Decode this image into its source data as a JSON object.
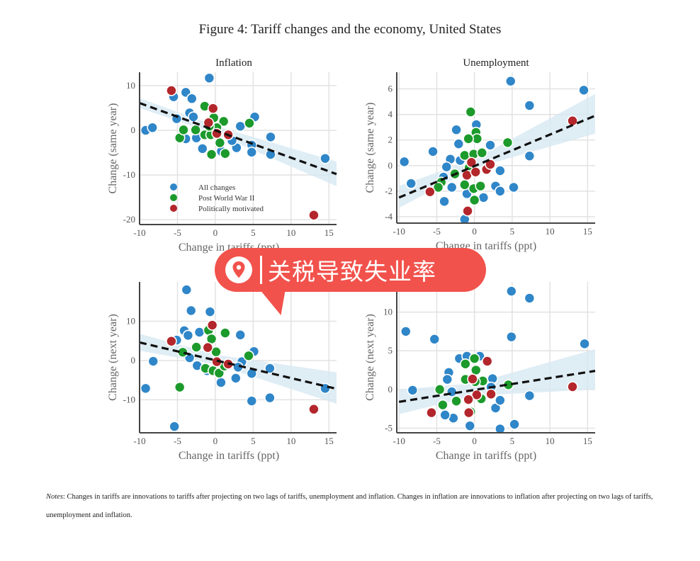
{
  "title": "Figure 4: Tariff changes and the economy, United States",
  "notes_label": "Notes",
  "notes_text": ": Changes in tariffs are innovations to tariffs after projecting on two lags of tariffs, unemployment and inflation. Changes in inflation are innovations to inflation after projecting on two lags of tariffs, unemployment and inflation.",
  "overlay": {
    "text": "关税导致失业率",
    "icon": "location-pin-icon",
    "color": "#f2524c"
  },
  "colors": {
    "all": "#2f86c8",
    "postwar": "#1c9a2b",
    "political": "#b3262b",
    "band": "#d7e8f3",
    "fit": "#111111"
  },
  "legend": [
    "All changes",
    "Post World War II",
    "Politically motivated"
  ],
  "chart_data": [
    {
      "type": "scatter",
      "title": "Inflation",
      "xlabel": "Change in tariffs (ppt)",
      "ylabel": "Change (same year)",
      "xlim": [
        -10,
        16
      ],
      "ylim": [
        -21.1,
        13
      ],
      "xticks": [
        -10,
        -5,
        0,
        5,
        10,
        15
      ],
      "yticks": [
        -20,
        -10,
        0,
        10
      ],
      "grid": true,
      "legend_position": "bottom-left",
      "fit_line": [
        [
          -10,
          6.1
        ],
        [
          16,
          -9.8
        ]
      ],
      "ci_band": {
        "x": [
          -10,
          0,
          16
        ],
        "upper": [
          7.2,
          1,
          -7
        ],
        "lower": [
          5,
          -0.8,
          -12.5
        ]
      },
      "series": [
        {
          "name": "All changes",
          "points": [
            [
              -0.8,
              11.7
            ],
            [
              -5.5,
              7.5
            ],
            [
              -3.9,
              8.5
            ],
            [
              -3.1,
              7.1
            ],
            [
              -3.4,
              3.9
            ],
            [
              -2.9,
              3
            ],
            [
              -5.1,
              2.6
            ],
            [
              -9.2,
              0
            ],
            [
              -8.3,
              0.6
            ],
            [
              -3.9,
              -1.9
            ],
            [
              -2.5,
              -1.7
            ],
            [
              -1.7,
              -4.1
            ],
            [
              -0.5,
              -5.2
            ],
            [
              0.8,
              -4.7
            ],
            [
              2.8,
              -3.9
            ],
            [
              3.3,
              0.9
            ],
            [
              5.2,
              3
            ],
            [
              4.8,
              -3.3
            ],
            [
              4.8,
              -4.9
            ],
            [
              7.3,
              -1.5
            ],
            [
              7.3,
              -5.4
            ],
            [
              14.5,
              -6.3
            ],
            [
              2.2,
              -2.3
            ]
          ]
        },
        {
          "name": "Post World War II",
          "points": [
            [
              -4.7,
              -1.7
            ],
            [
              -4.2,
              0.1
            ],
            [
              -2.6,
              0.1
            ],
            [
              -1.4,
              5.4
            ],
            [
              -1.4,
              -1
            ],
            [
              -0.6,
              -1
            ],
            [
              -0.5,
              -5.4
            ],
            [
              1.3,
              -5.2
            ],
            [
              0.6,
              -2.8
            ],
            [
              1.1,
              2
            ],
            [
              4.5,
              1.6
            ],
            [
              -0.2,
              2.8
            ],
            [
              0.2,
              0.6
            ],
            [
              -0.8,
              0.9
            ]
          ]
        },
        {
          "name": "Politically motivated",
          "points": [
            [
              -5.8,
              8.9
            ],
            [
              -0.3,
              4.9
            ],
            [
              -0.9,
              1.7
            ],
            [
              0.2,
              -0.7
            ],
            [
              1.7,
              -1
            ],
            [
              13,
              -19
            ]
          ]
        }
      ]
    },
    {
      "type": "scatter",
      "title": "Unemployment",
      "xlabel": "Change in tariffs (ppt)",
      "ylabel": "Change (same year)",
      "xlim": [
        -10.3,
        16
      ],
      "ylim": [
        -4.5,
        7.3
      ],
      "xticks": [
        -10,
        -5,
        0,
        5,
        10,
        15
      ],
      "yticks": [
        -4,
        -2,
        0,
        2,
        4,
        6
      ],
      "grid": true,
      "fit_line": [
        [
          -10,
          -2.5
        ],
        [
          16,
          3.9
        ]
      ],
      "ci_band": {
        "x": [
          -10,
          0,
          16
        ],
        "upper": [
          -1.6,
          0.5,
          5.6
        ],
        "lower": [
          -3.3,
          -0.2,
          2.5
        ]
      },
      "series": [
        {
          "name": "All changes",
          "points": [
            [
              4.8,
              6.6
            ],
            [
              14.5,
              5.9
            ],
            [
              7.3,
              4.7
            ],
            [
              7.3,
              0.75
            ],
            [
              -2.4,
              2.8
            ],
            [
              0.25,
              3.2
            ],
            [
              -2.1,
              1.7
            ],
            [
              2.1,
              1.6
            ],
            [
              -5.5,
              1.1
            ],
            [
              -9.3,
              0.3
            ],
            [
              -8.4,
              -1.4
            ],
            [
              -3.2,
              0.5
            ],
            [
              -3.7,
              -0.1
            ],
            [
              -4.1,
              -0.9
            ],
            [
              -3,
              -1.7
            ],
            [
              -4,
              -2.8
            ],
            [
              -1.3,
              -4.2
            ],
            [
              -1,
              -2.2
            ],
            [
              1.2,
              -2.5
            ],
            [
              2.8,
              -1.6
            ],
            [
              3.4,
              -0.4
            ],
            [
              3.4,
              -2
            ],
            [
              5.2,
              -1.7
            ],
            [
              -1.9,
              0.4
            ]
          ]
        },
        {
          "name": "Post World War II",
          "points": [
            [
              -0.5,
              4.2
            ],
            [
              0.2,
              2.6
            ],
            [
              0.35,
              2.1
            ],
            [
              -0.8,
              2.1
            ],
            [
              -1.3,
              0.8
            ],
            [
              -0.1,
              0.9
            ],
            [
              1,
              1
            ],
            [
              4.4,
              1.8
            ],
            [
              -2.6,
              -0.65
            ],
            [
              -4.4,
              -1.3
            ],
            [
              -4.8,
              -1.7
            ],
            [
              -1.3,
              -1.5
            ],
            [
              -0.1,
              -1.8
            ],
            [
              0.8,
              -1.6
            ],
            [
              0,
              -2.7
            ],
            [
              -0.7,
              -0.15
            ]
          ]
        },
        {
          "name": "Politically motivated",
          "points": [
            [
              -5.9,
              -2.05
            ],
            [
              -0.9,
              -3.55
            ],
            [
              -0.4,
              0.25
            ],
            [
              -1,
              -0.75
            ],
            [
              0.15,
              -0.5
            ],
            [
              1.6,
              -0.3
            ],
            [
              2.1,
              0.1
            ],
            [
              13,
              3.5
            ]
          ]
        }
      ]
    },
    {
      "type": "scatter",
      "title": "",
      "xlabel": "Change in tariffs (ppt)",
      "ylabel": "Change (next year)",
      "xlim": [
        -10,
        16
      ],
      "ylim": [
        -18.4,
        20
      ],
      "xticks": [
        -10,
        -5,
        0,
        5,
        10,
        15
      ],
      "yticks": [
        -10,
        0,
        10
      ],
      "grid": true,
      "fit_line": [
        [
          -10,
          4.6
        ],
        [
          16,
          -7.2
        ]
      ],
      "ci_band": {
        "x": [
          -10,
          0,
          16
        ],
        "upper": [
          6.8,
          1.5,
          -3
        ],
        "lower": [
          2.5,
          -1,
          -11
        ]
      },
      "series": [
        {
          "name": "All changes",
          "points": [
            [
              -3.8,
              18
            ],
            [
              -3.2,
              12.7
            ],
            [
              -0.7,
              12.4
            ],
            [
              -4.1,
              7.6
            ],
            [
              -3.6,
              6.4
            ],
            [
              -2.1,
              7.2
            ],
            [
              -5.1,
              5.2
            ],
            [
              -8.2,
              -0.2
            ],
            [
              -9.2,
              -7.1
            ],
            [
              -5.4,
              -16.8
            ],
            [
              3.3,
              6.5
            ],
            [
              5.1,
              2.3
            ],
            [
              4.8,
              -3.3
            ],
            [
              4.8,
              -10.3
            ],
            [
              7.2,
              -2
            ],
            [
              7.2,
              -9.5
            ],
            [
              2.7,
              -4.5
            ],
            [
              0.75,
              -5.6
            ],
            [
              14.5,
              -7.1
            ],
            [
              -3.4,
              0.7
            ],
            [
              -2.4,
              -1.3
            ],
            [
              3.5,
              -0.3
            ],
            [
              3,
              -1.7
            ],
            [
              -1.1,
              -2.6
            ]
          ]
        },
        {
          "name": "Post World War II",
          "points": [
            [
              1.3,
              7
            ],
            [
              -0.9,
              7.7
            ],
            [
              -0.5,
              5.5
            ],
            [
              -2.5,
              3.4
            ],
            [
              -4.3,
              2.1
            ],
            [
              -4.7,
              -6.8
            ],
            [
              4.4,
              1.2
            ],
            [
              -1.3,
              -2
            ],
            [
              -0.3,
              -2.6
            ],
            [
              0.5,
              -3.2
            ],
            [
              1.2,
              -1.4
            ],
            [
              0.1,
              2.2
            ]
          ]
        },
        {
          "name": "Politically motivated",
          "points": [
            [
              -5.8,
              4.9
            ],
            [
              -0.4,
              9
            ],
            [
              -1,
              3.3
            ],
            [
              0.2,
              -0.3
            ],
            [
              1.7,
              -0.9
            ],
            [
              13,
              -12.4
            ]
          ]
        }
      ]
    },
    {
      "type": "scatter",
      "title": "",
      "xlabel": "Change in tariffs (ppt)",
      "ylabel": "Change (next year)",
      "xlim": [
        -10.3,
        16
      ],
      "ylim": [
        -5.6,
        13.9
      ],
      "xticks": [
        -10,
        -5,
        0,
        5,
        10,
        15
      ],
      "yticks": [
        -5,
        0,
        5,
        10
      ],
      "grid": true,
      "fit_line": [
        [
          -10,
          -1.6
        ],
        [
          16,
          2.4
        ]
      ],
      "ci_band": {
        "x": [
          -10,
          0,
          16
        ],
        "upper": [
          0,
          0.8,
          5.2
        ],
        "lower": [
          -3.2,
          -0.8,
          0
        ]
      },
      "series": [
        {
          "name": "All changes",
          "points": [
            [
              4.9,
              12.7
            ],
            [
              7.3,
              11.8
            ],
            [
              -9.1,
              7.5
            ],
            [
              -5.3,
              6.5
            ],
            [
              4.9,
              6.8
            ],
            [
              14.6,
              5.9
            ],
            [
              -8.2,
              -0.1
            ],
            [
              7.3,
              -0.8
            ],
            [
              5.3,
              -4.5
            ],
            [
              3.4,
              -5.1
            ],
            [
              -0.6,
              -4.7
            ],
            [
              -2.8,
              -3.7
            ],
            [
              -3.9,
              -3.3
            ],
            [
              -2,
              4
            ],
            [
              -1,
              4.3
            ],
            [
              0.7,
              4.3
            ],
            [
              -3.4,
              2.2
            ],
            [
              -3.6,
              1.3
            ],
            [
              -3,
              -0.3
            ],
            [
              2.4,
              1.4
            ],
            [
              2.8,
              -2.4
            ],
            [
              3.4,
              -1.4
            ],
            [
              2.2,
              0.3
            ]
          ]
        },
        {
          "name": "Post World War II",
          "points": [
            [
              0,
              4
            ],
            [
              -1.2,
              3.3
            ],
            [
              0.2,
              2.5
            ],
            [
              -1.2,
              1.3
            ],
            [
              1.1,
              1.1
            ],
            [
              -4.6,
              0
            ],
            [
              -4.2,
              -2
            ],
            [
              -2.4,
              -1.5
            ],
            [
              4.5,
              0.6
            ],
            [
              0.1,
              1
            ],
            [
              0.9,
              -1.2
            ],
            [
              -0.5,
              -2.9
            ]
          ]
        },
        {
          "name": "Politically motivated",
          "points": [
            [
              1.7,
              3.65
            ],
            [
              -0.25,
              1.35
            ],
            [
              0.3,
              -0.7
            ],
            [
              2.2,
              -0.6
            ],
            [
              -0.8,
              -1.3
            ],
            [
              -0.75,
              -3
            ],
            [
              -5.7,
              -3
            ],
            [
              13,
              0.35
            ]
          ]
        }
      ]
    }
  ]
}
